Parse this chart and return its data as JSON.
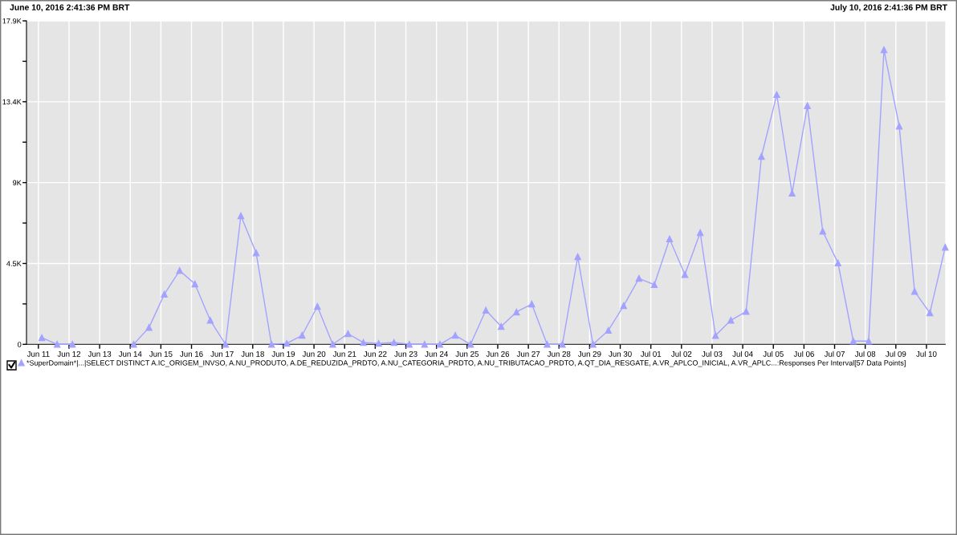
{
  "chart_data": {
    "type": "line",
    "annotations": [
      "June 10, 2016 2:41:36 PM BRT",
      "July 10, 2016 2:41:36 PM BRT"
    ],
    "x": [
      "2016-06-11T02:41",
      "2016-06-11T14:41",
      "2016-06-12T02:41",
      "2016-06-12T14:41",
      "2016-06-13T02:41",
      "2016-06-13T14:41",
      "2016-06-14T02:41",
      "2016-06-14T14:41",
      "2016-06-15T02:41",
      "2016-06-15T14:41",
      "2016-06-16T02:41",
      "2016-06-16T14:41",
      "2016-06-17T02:41",
      "2016-06-17T14:41",
      "2016-06-18T02:41",
      "2016-06-18T14:41",
      "2016-06-19T02:41",
      "2016-06-19T14:41",
      "2016-06-20T02:41",
      "2016-06-20T14:41",
      "2016-06-21T02:41",
      "2016-06-21T14:41",
      "2016-06-22T02:41",
      "2016-06-22T14:41",
      "2016-06-23T02:41",
      "2016-06-23T14:41",
      "2016-06-24T02:41",
      "2016-06-24T14:41",
      "2016-06-25T02:41",
      "2016-06-25T14:41",
      "2016-06-26T02:41",
      "2016-06-26T14:41",
      "2016-06-27T02:41",
      "2016-06-27T14:41",
      "2016-06-28T02:41",
      "2016-06-28T14:41",
      "2016-06-29T02:41",
      "2016-06-29T14:41",
      "2016-06-30T02:41",
      "2016-06-30T14:41",
      "2016-07-01T02:41",
      "2016-07-01T14:41",
      "2016-07-02T02:41",
      "2016-07-02T14:41",
      "2016-07-03T02:41",
      "2016-07-03T14:41",
      "2016-07-04T02:41",
      "2016-07-04T14:41",
      "2016-07-05T02:41",
      "2016-07-05T14:41",
      "2016-07-06T02:41",
      "2016-07-06T14:41",
      "2016-07-07T02:41",
      "2016-07-07T14:41",
      "2016-07-08T02:41",
      "2016-07-08T14:41",
      "2016-07-09T02:41",
      "2016-07-09T14:41",
      "2016-07-10T02:41",
      "2016-07-10T14:41"
    ],
    "series": [
      {
        "name": "*SuperDomain*|...|SELECT DISTINCT A.IC_ORIGEM_INVSO, A.NU_PRODUTO, A.DE_REDUZIDA_PRDTO, A.NU_CATEGORIA_PRDTO, A.NU_TRIBUTACAO_PRDTO, A.QT_DIA_RESGATE, A.VR_APLCO_INICIAL, A.VR_APLC...:Responses Per Interval[57 Data Points]",
        "color": "#a3a3ff",
        "values": [
          370,
          0,
          0,
          null,
          null,
          null,
          0,
          930,
          2770,
          4080,
          3340,
          1330,
          0,
          7110,
          5060,
          0,
          50,
          500,
          2100,
          0,
          590,
          100,
          50,
          100,
          0,
          0,
          0,
          500,
          0,
          1890,
          990,
          1790,
          2230,
          0,
          0,
          4850,
          0,
          770,
          2140,
          3650,
          3300,
          5830,
          3860,
          6180,
          490,
          1330,
          1820,
          10400,
          13820,
          8360,
          13200,
          6260,
          4500,
          180,
          180,
          16300,
          12070,
          2930,
          1740,
          5370
        ]
      }
    ],
    "xlim": [
      "2016-06-10T14:41",
      "2016-07-10T14:41"
    ],
    "xticks": [
      {
        "value": "2016-06-11",
        "label": "Jun 11"
      },
      {
        "value": "2016-06-12",
        "label": "Jun 12"
      },
      {
        "value": "2016-06-13",
        "label": "Jun 13"
      },
      {
        "value": "2016-06-14",
        "label": "Jun 14"
      },
      {
        "value": "2016-06-15",
        "label": "Jun 15"
      },
      {
        "value": "2016-06-16",
        "label": "Jun 16"
      },
      {
        "value": "2016-06-17",
        "label": "Jun 17"
      },
      {
        "value": "2016-06-18",
        "label": "Jun 18"
      },
      {
        "value": "2016-06-19",
        "label": "Jun 19"
      },
      {
        "value": "2016-06-20",
        "label": "Jun 20"
      },
      {
        "value": "2016-06-21",
        "label": "Jun 21"
      },
      {
        "value": "2016-06-22",
        "label": "Jun 22"
      },
      {
        "value": "2016-06-23",
        "label": "Jun 23"
      },
      {
        "value": "2016-06-24",
        "label": "Jun 24"
      },
      {
        "value": "2016-06-25",
        "label": "Jun 25"
      },
      {
        "value": "2016-06-26",
        "label": "Jun 26"
      },
      {
        "value": "2016-06-27",
        "label": "Jun 27"
      },
      {
        "value": "2016-06-28",
        "label": "Jun 28"
      },
      {
        "value": "2016-06-29",
        "label": "Jun 29"
      },
      {
        "value": "2016-06-30",
        "label": "Jun 30"
      },
      {
        "value": "2016-07-01",
        "label": "Jul 01"
      },
      {
        "value": "2016-07-02",
        "label": "Jul 02"
      },
      {
        "value": "2016-07-03",
        "label": "Jul 03"
      },
      {
        "value": "2016-07-04",
        "label": "Jul 04"
      },
      {
        "value": "2016-07-05",
        "label": "Jul 05"
      },
      {
        "value": "2016-07-06",
        "label": "Jul 06"
      },
      {
        "value": "2016-07-07",
        "label": "Jul 07"
      },
      {
        "value": "2016-07-08",
        "label": "Jul 08"
      },
      {
        "value": "2016-07-09",
        "label": "Jul 09"
      },
      {
        "value": "2016-07-10",
        "label": "Jul 10"
      }
    ],
    "ylim": [
      0,
      17900
    ],
    "yticks": [
      0,
      {
        "value": 2237.5,
        "label": null
      },
      {
        "value": 4475,
        "label": "4.5K"
      },
      {
        "value": 6712.5,
        "label": null
      },
      {
        "value": 8950,
        "label": "9K"
      },
      {
        "value": 11187.5,
        "label": null
      },
      {
        "value": 13425,
        "label": "13.4K"
      },
      {
        "value": 15662.5,
        "label": null
      },
      {
        "value": 17900,
        "label": "17.9K"
      }
    ],
    "grid": true,
    "legend": "bottom",
    "marker": "triangle",
    "line_style": "solid"
  }
}
